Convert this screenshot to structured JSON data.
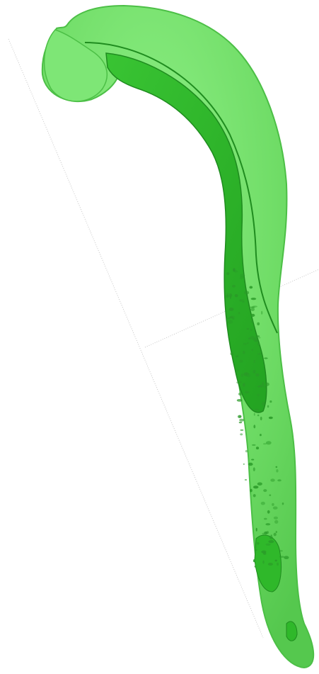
{
  "scene": {
    "background_color": "#ffffff",
    "axis_line_color": "#c8c8c8",
    "model": {
      "outer_surface_color": "#72e06a",
      "outer_surface_edge_color": "#4cbf46",
      "inner_surface_color": "#2fb82a",
      "inner_surface_edge_color": "#1f8c1f",
      "speckle_color": "#2a9a28"
    }
  }
}
